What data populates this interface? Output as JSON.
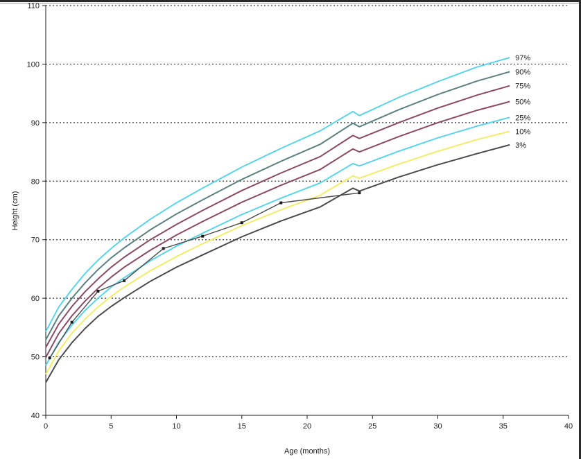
{
  "chart_data": {
    "type": "line",
    "xlabel": "Age (months)",
    "ylabel": "Height (cm)",
    "xlim": [
      0,
      40
    ],
    "ylim": [
      40,
      110
    ],
    "x_ticks": [
      0,
      5,
      10,
      15,
      20,
      25,
      30,
      35,
      40
    ],
    "y_ticks": [
      40,
      50,
      60,
      70,
      80,
      90,
      100,
      110
    ],
    "grid": "horizontal dotted",
    "legend": "labels at right end of curves",
    "series": [
      {
        "name": "97%",
        "color": "#5ad3ea",
        "x": [
          0,
          1,
          2,
          3,
          4,
          5,
          6,
          8,
          10,
          12,
          15,
          18,
          21,
          23.5,
          24,
          27,
          30,
          33,
          35.5
        ],
        "y": [
          54.3,
          58.5,
          61.5,
          64.2,
          66.5,
          68.5,
          70.3,
          73.5,
          76.3,
          78.8,
          82.4,
          85.6,
          88.6,
          91.9,
          91.2,
          94.3,
          97.0,
          99.5,
          101.1
        ]
      },
      {
        "name": "90%",
        "color": "#5c7f80",
        "x": [
          0,
          1,
          2,
          3,
          4,
          5,
          6,
          8,
          10,
          12,
          15,
          18,
          21,
          23.5,
          24,
          27,
          30,
          33,
          35.5
        ],
        "y": [
          52.9,
          57.0,
          60.0,
          62.6,
          64.9,
          66.9,
          68.6,
          71.7,
          74.4,
          76.8,
          80.3,
          83.4,
          86.3,
          89.9,
          89.3,
          92.2,
          94.8,
          97.1,
          98.7
        ]
      },
      {
        "name": "75%",
        "color": "#8a4a65",
        "x": [
          0,
          1,
          2,
          3,
          4,
          5,
          6,
          8,
          10,
          12,
          15,
          18,
          21,
          23.5,
          24,
          27,
          30,
          33,
          35.5
        ],
        "y": [
          51.6,
          55.6,
          58.6,
          61.1,
          63.3,
          65.3,
          67.0,
          70.0,
          72.6,
          75.0,
          78.4,
          81.4,
          84.2,
          87.8,
          87.3,
          90.0,
          92.5,
          94.7,
          96.3
        ]
      },
      {
        "name": "50%",
        "color": "#8a4a65",
        "x": [
          0,
          1,
          2,
          3,
          4,
          5,
          6,
          8,
          10,
          12,
          15,
          18,
          21,
          23.5,
          24,
          27,
          30,
          33,
          35.5
        ],
        "y": [
          49.9,
          54.0,
          57.0,
          59.5,
          61.7,
          63.6,
          65.3,
          68.2,
          70.8,
          73.1,
          76.4,
          79.3,
          82.0,
          85.5,
          85.0,
          87.6,
          90.0,
          92.1,
          93.6
        ]
      },
      {
        "name": "25%",
        "color": "#5ad3ea",
        "x": [
          0,
          1,
          2,
          3,
          4,
          5,
          6,
          8,
          10,
          12,
          15,
          18,
          21,
          23.5,
          24,
          27,
          30,
          33,
          35.5
        ],
        "y": [
          48.5,
          52.5,
          55.4,
          57.9,
          60.0,
          61.9,
          63.5,
          66.4,
          68.9,
          71.1,
          74.3,
          77.1,
          79.7,
          83.0,
          82.6,
          85.1,
          87.4,
          89.4,
          90.9
        ]
      },
      {
        "name": "10%",
        "color": "#f2ec6a",
        "x": [
          0,
          1,
          2,
          3,
          4,
          5,
          6,
          8,
          10,
          12,
          15,
          18,
          21,
          23.5,
          24,
          27,
          30,
          33,
          35.5
        ],
        "y": [
          47.0,
          51.0,
          54.0,
          56.4,
          58.5,
          60.3,
          61.9,
          64.7,
          67.1,
          69.3,
          72.4,
          75.1,
          77.6,
          80.9,
          80.5,
          82.9,
          85.1,
          87.1,
          88.5
        ]
      },
      {
        "name": "3%",
        "color": "#4a4a4a",
        "x": [
          0,
          1,
          2,
          3,
          4,
          5,
          6,
          8,
          10,
          12,
          15,
          18,
          21,
          23.5,
          24,
          27,
          30,
          33,
          35.5
        ],
        "y": [
          45.6,
          49.5,
          52.4,
          54.8,
          56.9,
          58.6,
          60.1,
          62.9,
          65.3,
          67.4,
          70.5,
          73.2,
          75.6,
          78.8,
          78.3,
          80.7,
          82.8,
          84.7,
          86.2
        ]
      },
      {
        "name": "",
        "color": "#4a4a4a",
        "markers": true,
        "x": [
          0.3,
          2,
          4,
          6,
          9,
          12,
          15,
          18,
          24
        ],
        "y": [
          49.8,
          55.9,
          61.2,
          63.0,
          68.5,
          70.6,
          72.9,
          76.3,
          78.0
        ]
      }
    ]
  }
}
